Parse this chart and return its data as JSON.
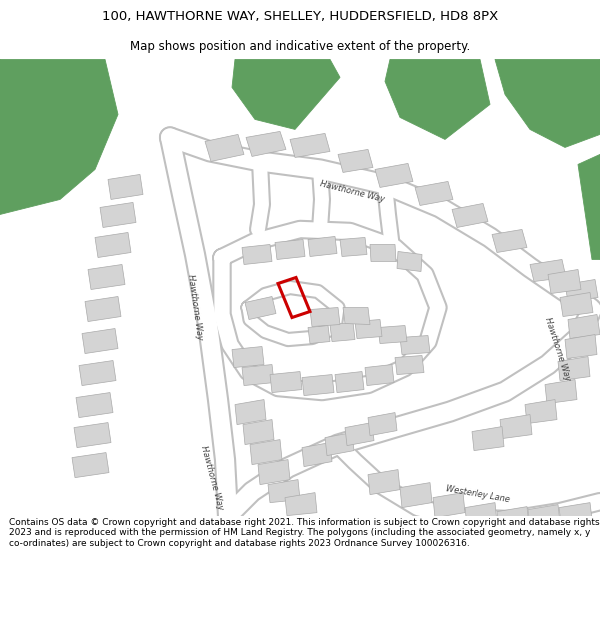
{
  "title_line1": "100, HAWTHORNE WAY, SHELLEY, HUDDERSFIELD, HD8 8PX",
  "title_line2": "Map shows position and indicative extent of the property.",
  "title_fontsize": 9.5,
  "subtitle_fontsize": 8.5,
  "background_color": "#ffffff",
  "map_bg_color": "#f2f2f2",
  "road_color": "#ffffff",
  "road_outline_color": "#c0c0c0",
  "building_color": "#d4d4d4",
  "building_outline": "#aaaaaa",
  "green_color": "#5f9f5f",
  "highlight_color": "#cc0000",
  "footer_text": "Contains OS data © Crown copyright and database right 2021. This information is subject to Crown copyright and database rights 2023 and is reproduced with the permission of HM Land Registry. The polygons (including the associated geometry, namely x, y co-ordinates) are subject to Crown copyright and database rights 2023 Ordnance Survey 100026316.",
  "footer_fontsize": 6.5
}
